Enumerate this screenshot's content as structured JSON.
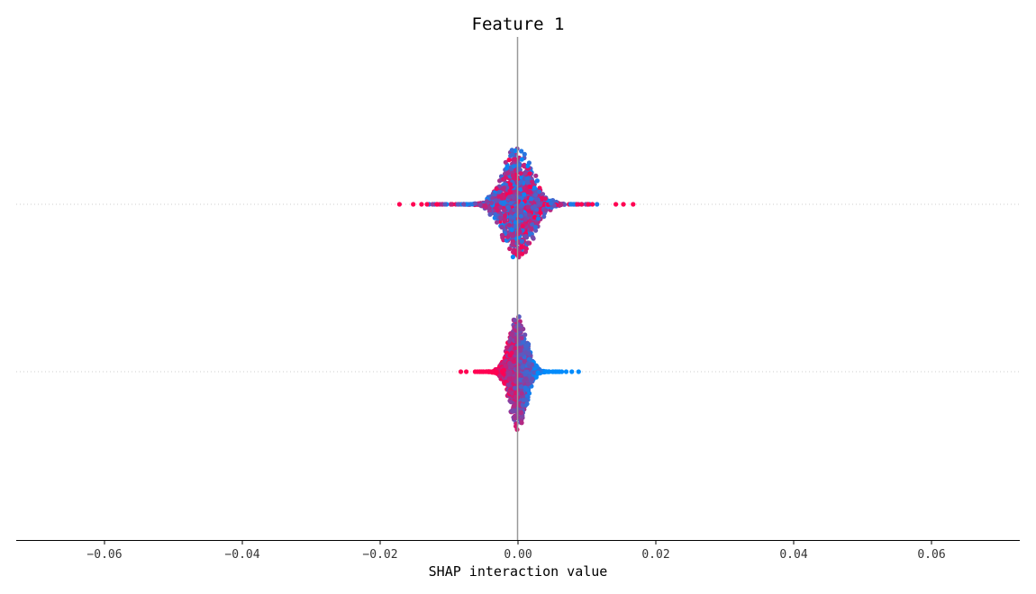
{
  "chart_data": {
    "type": "scatter",
    "subtype": "shap-beeswarm",
    "title": "Feature 1",
    "xlabel": "SHAP interaction value",
    "ylabel": "",
    "xlim": [
      -0.073,
      0.073
    ],
    "xticks": [
      -0.06,
      -0.04,
      -0.02,
      0.0,
      0.02,
      0.04,
      0.06
    ],
    "xtick_labels": [
      "−0.06",
      "−0.04",
      "−0.02",
      "0.00",
      "0.02",
      "0.04",
      "0.06"
    ],
    "zero_line": true,
    "row_grid": "dotted",
    "colors": {
      "low": "#008bfb",
      "high": "#ff0052",
      "zero_line": "#999999",
      "axis": "#000000"
    },
    "rows": [
      {
        "row": 0,
        "spread": 0.0035,
        "range": [
          -0.0172,
          0.0167
        ],
        "outliers": [
          {
            "x": -0.0172,
            "color": "high"
          },
          {
            "x": -0.0152,
            "color": "high"
          },
          {
            "x": -0.014,
            "color": "high"
          },
          {
            "x": -0.0132,
            "color": "high"
          },
          {
            "x": -0.0124,
            "color": "mixed"
          },
          {
            "x": -0.0118,
            "color": "high"
          },
          {
            "x": 0.0102,
            "color": "high"
          },
          {
            "x": 0.0108,
            "color": "high"
          },
          {
            "x": 0.0142,
            "color": "high"
          },
          {
            "x": 0.0153,
            "color": "high"
          },
          {
            "x": 0.0167,
            "color": "high"
          }
        ]
      },
      {
        "row": 1,
        "spread": 0.002,
        "range": [
          -0.0083,
          0.0088
        ],
        "outliers": [
          {
            "x": -0.0083,
            "color": "high"
          },
          {
            "x": -0.0075,
            "color": "high"
          },
          {
            "x": -0.0055,
            "color": "high"
          },
          {
            "x": 0.005,
            "color": "low"
          },
          {
            "x": 0.006,
            "color": "low"
          },
          {
            "x": 0.007,
            "color": "low"
          },
          {
            "x": 0.0078,
            "color": "low"
          },
          {
            "x": 0.0088,
            "color": "low"
          }
        ]
      }
    ]
  }
}
